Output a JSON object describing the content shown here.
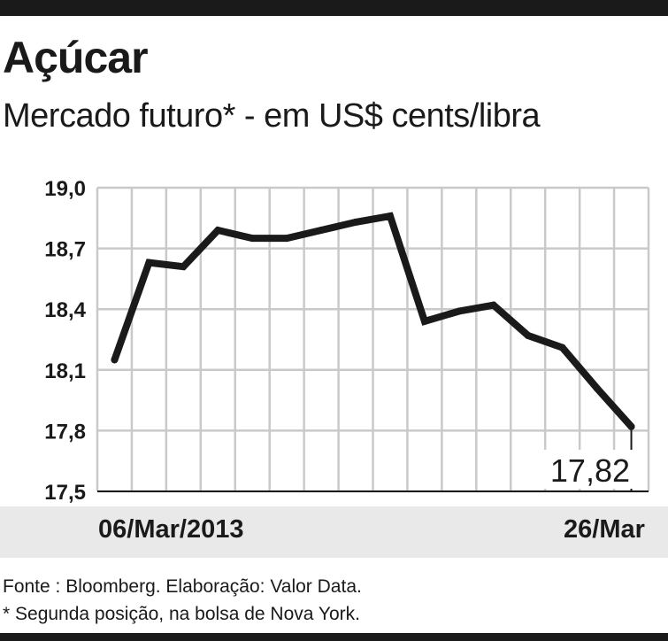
{
  "header": {
    "title": "Açúcar",
    "subtitle": "Mercado futuro* - em US$ cents/libra"
  },
  "chart_data": {
    "type": "line",
    "title": "Açúcar",
    "subtitle": "Mercado futuro* - em US$ cents/libra",
    "xlabel": "",
    "ylabel": "",
    "x_start_label": "06/Mar/2013",
    "x_end_label": "26/Mar",
    "ylim": [
      17.5,
      19.0
    ],
    "yticks": [
      "19,0",
      "18,7",
      "18,4",
      "18,1",
      "17,8",
      "17,5"
    ],
    "ytick_values": [
      19.0,
      18.7,
      18.4,
      18.1,
      17.8,
      17.5
    ],
    "grid": true,
    "series": [
      {
        "values": [
          18.15,
          18.63,
          18.61,
          18.79,
          18.75,
          18.75,
          18.79,
          18.83,
          18.86,
          18.34,
          18.39,
          18.42,
          18.27,
          18.21,
          18.01,
          17.82
        ]
      }
    ],
    "last_value_label": "17,82",
    "line_color": "#1a1a1a",
    "grid_color": "#c9c9c9"
  },
  "footer": {
    "source": "Fonte : Bloomberg. Elaboração: Valor Data.",
    "note": "* Segunda posição, na bolsa de Nova York."
  }
}
